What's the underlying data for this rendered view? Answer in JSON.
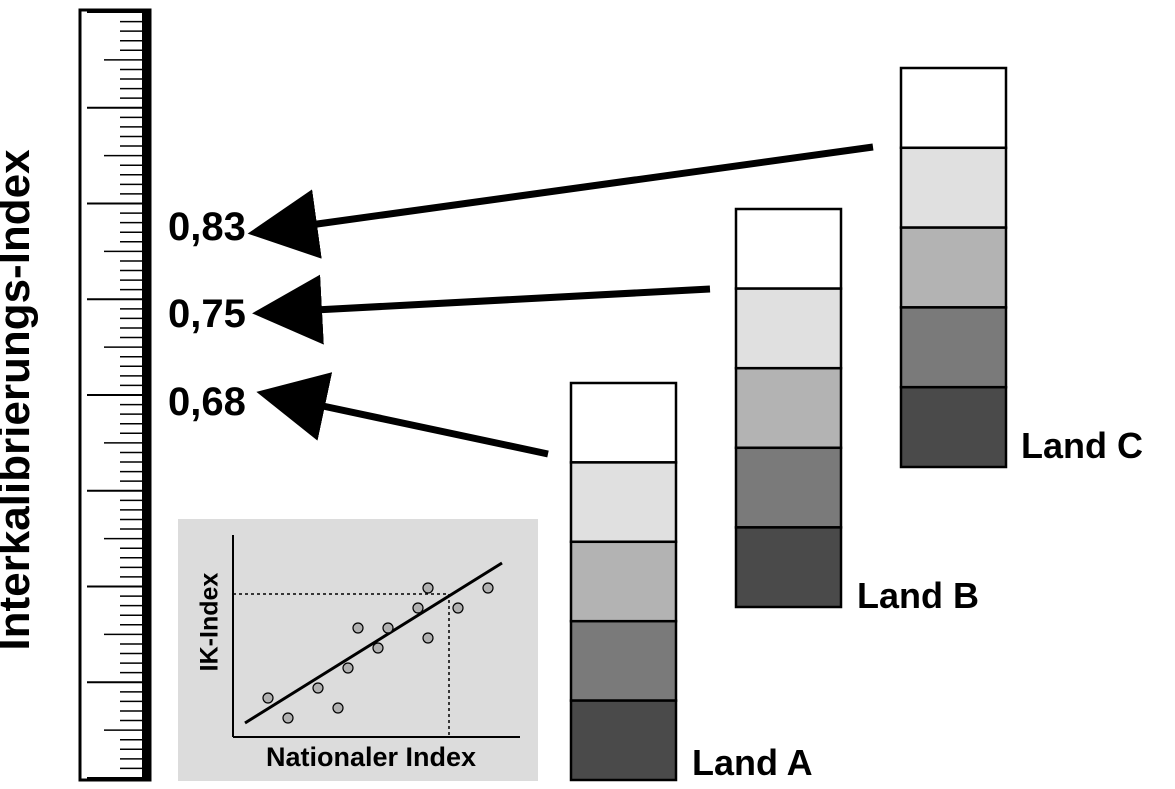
{
  "axis": {
    "title": "Interkalibrierungs-Index"
  },
  "indices": [
    {
      "value": "0,83"
    },
    {
      "value": "0,75"
    },
    {
      "value": "0,68"
    }
  ],
  "countries": [
    {
      "label": "Land A"
    },
    {
      "label": "Land B"
    },
    {
      "label": "Land C"
    }
  ],
  "class_colors": [
    "#ffffff",
    "#e0e0e0",
    "#b3b3b3",
    "#7a7a7a",
    "#4a4a4a"
  ],
  "inset": {
    "ylabel": "IK-Index",
    "xlabel": "Nationaler Index",
    "background": "#dcdcdc"
  }
}
